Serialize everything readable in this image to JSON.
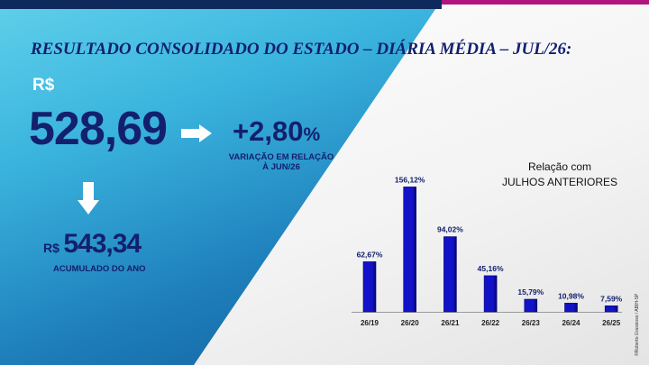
{
  "title": "RESULTADO CONSOLIDADO DO ESTADO – DIÁRIA MÉDIA – JUL/26:",
  "main": {
    "currency": "R$",
    "value": "528,69",
    "variation_value": "+2,80",
    "variation_symbol": "%",
    "variation_label_line1": "VARIAÇÃO  EM RELAÇÃO",
    "variation_label_line2": "À JUN/26"
  },
  "accumulated": {
    "currency": "R$",
    "value": "543,34",
    "label": "ACUMULADO  DO ANO"
  },
  "icons": {
    "right_arrow": "arrow-right-icon",
    "down_arrow": "arrow-down-icon"
  },
  "colors": {
    "navy": "#13206e",
    "bar_fill": "#1212c8",
    "bar_dark": "#06066e",
    "accent_magenta": "#b0157e"
  },
  "chart_data": {
    "type": "bar",
    "title_line1": "Relação com",
    "title_line2": "JULHOS ANTERIORES",
    "categories": [
      "26/19",
      "26/20",
      "26/21",
      "26/22",
      "26/23",
      "26/24",
      "26/25"
    ],
    "values": [
      62.67,
      156.12,
      94.02,
      45.16,
      15.79,
      10.98,
      7.59
    ],
    "value_labels": [
      "62,67%",
      "156,12%",
      "94,02%",
      "45,16%",
      "15,79%",
      "10,98%",
      "7,59%"
    ],
    "ylim": [
      0,
      160
    ],
    "grid": false,
    "legend": "none"
  },
  "credit": "©Roberto Grassioso / ABIH-SP"
}
